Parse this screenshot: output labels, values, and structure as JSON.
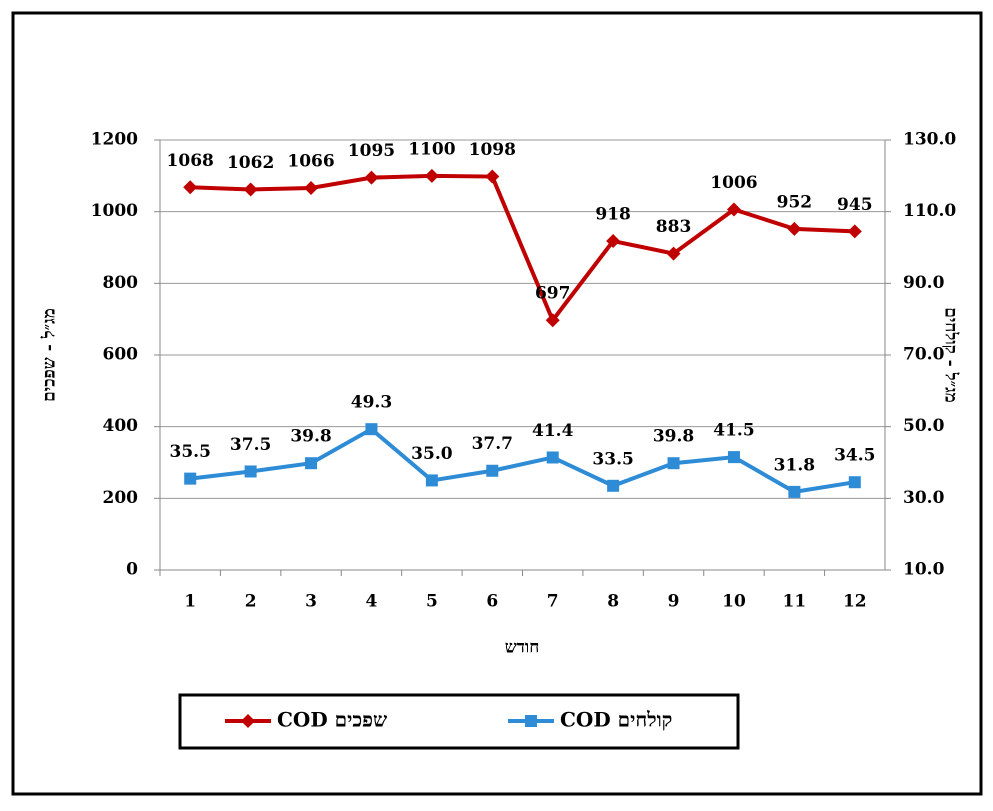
{
  "chart_data": {
    "type": "line",
    "y_label": "מג״ל - שפכים",
    "y2_label": "מג״ל - קולחים",
    "x_label": "חודש",
    "categories": [
      "1",
      "2",
      "3",
      "4",
      "5",
      "6",
      "7",
      "8",
      "9",
      "10",
      "11",
      "12"
    ],
    "series": [
      {
        "name": "שפכים COD",
        "color": "#c00000",
        "marker": "diamond",
        "values": [
          1068,
          1062,
          1066,
          1095,
          1100,
          1098,
          697,
          918,
          883,
          1006,
          952,
          945
        ]
      },
      {
        "name": "קולחים COD",
        "color": "#2e8bd6",
        "marker": "square",
        "axis": "y2",
        "values": [
          35.5,
          37.5,
          39.8,
          49.3,
          35.0,
          37.7,
          41.4,
          33.5,
          39.8,
          41.5,
          31.8,
          34.5
        ],
        "value_labels": [
          "35.5",
          "37.5",
          "39.8",
          "49.3",
          "35.0",
          "37.7",
          "41.4",
          "33.5",
          "39.8",
          "41.5",
          "31.8",
          "34.5"
        ]
      }
    ],
    "ylim": [
      0,
      1200
    ],
    "yticks": [
      0,
      200,
      400,
      600,
      800,
      1000,
      1200
    ],
    "y2lim": [
      10,
      130
    ],
    "y2ticks": [
      {
        "value": 10,
        "label": "10.0"
      },
      {
        "value": 30,
        "label": "30.0"
      },
      {
        "value": 50,
        "label": "50.0"
      },
      {
        "value": 70,
        "label": "70.0"
      },
      {
        "value": 90,
        "label": "90.0"
      },
      {
        "value": 110,
        "label": "110.0"
      },
      {
        "value": 130,
        "label": "130.0"
      }
    ],
    "grid": true
  }
}
